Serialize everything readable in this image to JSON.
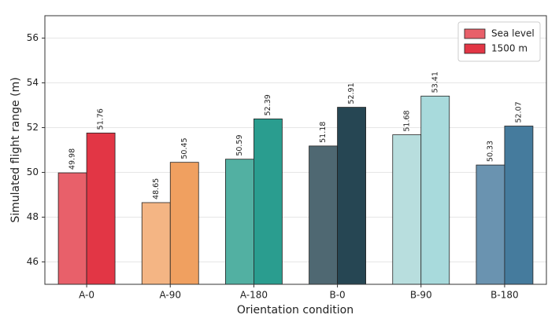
{
  "chart_data": {
    "type": "grouped-bar",
    "xlabel": "Orientation condition",
    "ylabel": "Simulated flight range (m)",
    "categories": [
      "A-0",
      "A-90",
      "A-180",
      "B-0",
      "B-90",
      "B-180"
    ],
    "series": [
      {
        "name": "Sea level",
        "color": "#e8606a",
        "colors": [
          "#e8606a",
          "#f4b584",
          "#52b0a2",
          "#4f6872",
          "#b8dede",
          "#6a93b0"
        ],
        "values": [
          49.98,
          48.65,
          50.59,
          51.18,
          51.68,
          50.33
        ]
      },
      {
        "name": "1500 m",
        "color": "#e23645",
        "colors": [
          "#e23645",
          "#f0a060",
          "#2a9d8f",
          "#264653",
          "#a8dadc",
          "#457b9d"
        ],
        "values": [
          51.76,
          50.45,
          52.39,
          52.91,
          53.41,
          52.07
        ]
      }
    ],
    "ylim": [
      45,
      57
    ],
    "yticks": [
      46,
      48,
      50,
      52,
      54,
      56
    ],
    "grid": true,
    "legend": "upper right"
  }
}
